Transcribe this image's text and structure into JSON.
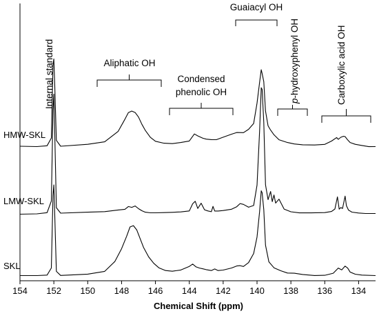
{
  "chart_data": {
    "type": "line",
    "xlabel": "Chemical Shift (ppm)",
    "ylabel": "",
    "title": "",
    "xlim": [
      154,
      133
    ],
    "x_reversed": true,
    "x_ticks": [
      154,
      152,
      150,
      148,
      146,
      144,
      142,
      140,
      138,
      136,
      134
    ],
    "grid": false,
    "series": [
      {
        "name": "HMW-SKL",
        "x": [
          154,
          153,
          152.4,
          152.15,
          152.05,
          152.0,
          151.95,
          151.85,
          151.6,
          150,
          149,
          148.2,
          147.8,
          147.6,
          147.4,
          147.2,
          147.0,
          146.8,
          146.6,
          146.3,
          146,
          145.5,
          145,
          144.5,
          144,
          143.7,
          143.5,
          143.2,
          143,
          142.7,
          142.4,
          142,
          141.5,
          141.2,
          141,
          140.8,
          140.5,
          140.2,
          140.0,
          139.85,
          139.75,
          139.7,
          139.6,
          139.5,
          139.35,
          139.2,
          139.0,
          138.7,
          138.2,
          137.8,
          137.3,
          136.6,
          136,
          135.6,
          135.3,
          135.2,
          135.05,
          134.9,
          134.8,
          134.65,
          134.5,
          134.2,
          133.8,
          133.4,
          133.0
        ],
        "y": [
          0.0,
          0.0,
          0.02,
          0.2,
          1.95,
          2.1,
          1.5,
          0.15,
          0.01,
          0.05,
          0.1,
          0.35,
          0.65,
          0.82,
          0.86,
          0.82,
          0.7,
          0.52,
          0.38,
          0.22,
          0.13,
          0.08,
          0.06,
          0.08,
          0.12,
          0.3,
          0.26,
          0.2,
          0.17,
          0.15,
          0.15,
          0.22,
          0.3,
          0.34,
          0.33,
          0.32,
          0.4,
          0.55,
          1.05,
          1.55,
          1.85,
          1.75,
          1.55,
          0.85,
          0.5,
          0.4,
          0.28,
          0.15,
          0.08,
          0.05,
          0.04,
          0.04,
          0.05,
          0.12,
          0.2,
          0.16,
          0.22,
          0.25,
          0.24,
          0.15,
          0.08,
          0.04,
          0.02,
          0.0,
          0.0
        ]
      },
      {
        "name": "LMW-SKL",
        "x": [
          154,
          153,
          152.4,
          152.15,
          152.05,
          152.0,
          151.95,
          151.85,
          151.6,
          150,
          149,
          148.2,
          147.8,
          147.6,
          147.4,
          147.2,
          147.0,
          146.8,
          146.6,
          146.3,
          146,
          145.5,
          145,
          144.5,
          144,
          143.8,
          143.65,
          143.5,
          143.3,
          143.1,
          142.9,
          142.7,
          142.6,
          142.5,
          142.3,
          142,
          141.5,
          141.2,
          141,
          140.8,
          140.5,
          140.2,
          140.0,
          139.85,
          139.75,
          139.7,
          139.6,
          139.5,
          139.35,
          139.2,
          139.1,
          139.0,
          138.9,
          138.7,
          138.4,
          138.0,
          137.5,
          136.8,
          136,
          135.6,
          135.4,
          135.25,
          135.15,
          135.05,
          134.95,
          134.8,
          134.72,
          134.6,
          134.4,
          134.0,
          133.6,
          133.0
        ],
        "y": [
          0.0,
          0.0,
          0.02,
          0.3,
          2.5,
          2.9,
          2.0,
          0.15,
          0.01,
          0.03,
          0.05,
          0.1,
          0.12,
          0.18,
          0.15,
          0.18,
          0.12,
          0.08,
          0.05,
          0.03,
          0.02,
          0.02,
          0.03,
          0.05,
          0.08,
          0.25,
          0.3,
          0.12,
          0.25,
          0.1,
          0.08,
          0.06,
          0.18,
          0.06,
          0.06,
          0.08,
          0.12,
          0.18,
          0.25,
          0.22,
          0.15,
          0.2,
          0.7,
          2.0,
          3.05,
          3.0,
          2.2,
          0.7,
          0.35,
          0.55,
          0.3,
          0.45,
          0.25,
          0.35,
          0.12,
          0.06,
          0.03,
          0.02,
          0.02,
          0.05,
          0.12,
          0.42,
          0.12,
          0.15,
          0.12,
          0.42,
          0.2,
          0.1,
          0.05,
          0.02,
          0.0,
          0.0
        ]
      },
      {
        "name": "SKL",
        "x": [
          154,
          153,
          152.4,
          152.15,
          152.05,
          152.0,
          151.95,
          151.85,
          151.6,
          150,
          149,
          148.4,
          148,
          147.7,
          147.5,
          147.3,
          147.1,
          146.9,
          146.7,
          146.4,
          146.1,
          145.8,
          145.4,
          145,
          144.5,
          144,
          143.8,
          143.6,
          143.4,
          143.2,
          143,
          142.7,
          142.5,
          142.3,
          142,
          141.5,
          141.2,
          141,
          140.8,
          140.5,
          140.2,
          140.0,
          139.85,
          139.75,
          139.7,
          139.6,
          139.5,
          139.3,
          139.0,
          138.6,
          138.2,
          137.8,
          137.3,
          136.6,
          136,
          135.5,
          135.2,
          135.0,
          134.8,
          134.65,
          134.5,
          134.2,
          133.8,
          133.0
        ],
        "y": [
          0.0,
          0.0,
          0.02,
          0.2,
          1.95,
          2.2,
          1.5,
          0.1,
          0.01,
          0.05,
          0.12,
          0.35,
          0.65,
          0.95,
          1.18,
          1.22,
          1.12,
          0.9,
          0.68,
          0.45,
          0.3,
          0.2,
          0.14,
          0.12,
          0.14,
          0.22,
          0.28,
          0.22,
          0.2,
          0.18,
          0.15,
          0.12,
          0.16,
          0.13,
          0.15,
          0.2,
          0.24,
          0.24,
          0.22,
          0.32,
          0.55,
          0.95,
          1.55,
          2.05,
          2.0,
          1.6,
          0.75,
          0.35,
          0.2,
          0.12,
          0.06,
          0.06,
          0.04,
          0.02,
          0.02,
          0.06,
          0.18,
          0.14,
          0.24,
          0.2,
          0.1,
          0.04,
          0.01,
          0.0
        ]
      }
    ],
    "annotations": [
      {
        "label": "Internal standard",
        "x": 152.0
      },
      {
        "label": "Aliphatic OH",
        "range": [
          149.5,
          145.8
        ]
      },
      {
        "label_line1": "Condensed",
        "label_line2": "phenolic OH",
        "range": [
          145.3,
          141.3
        ]
      },
      {
        "label": "Guaiacyl OH",
        "range": [
          141.3,
          138.9
        ]
      },
      {
        "label_prefix": "p",
        "label_rest": "-hydroxyphenyl OH",
        "range": [
          138.9,
          137.0
        ]
      },
      {
        "label": "Carboxylic acid OH",
        "range": [
          136.3,
          133.6
        ]
      }
    ]
  }
}
